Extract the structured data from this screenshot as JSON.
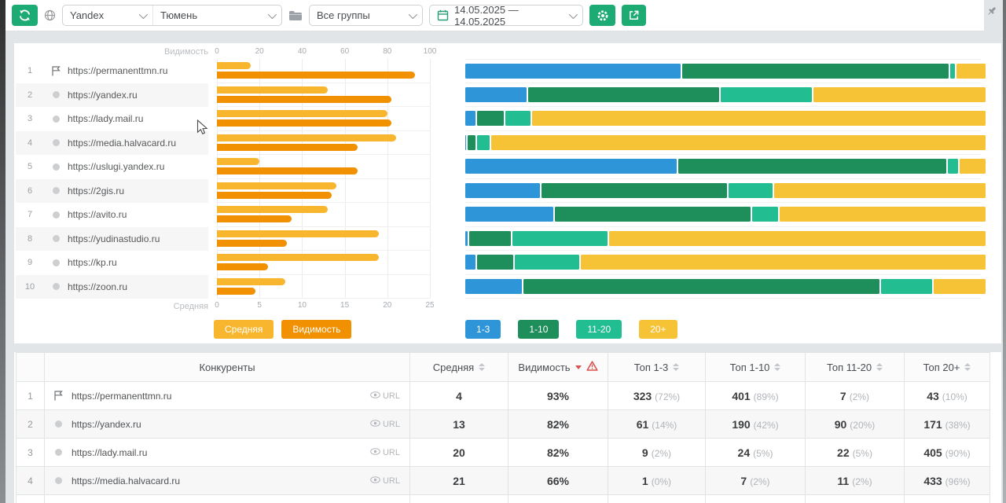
{
  "toolbar": {
    "search_engine": "Yandex",
    "region": "Тюмень",
    "groups": "Все группы",
    "date_range": "14.05.2025 — 14.05.2025"
  },
  "chart_labels": {
    "visibility": "Видимость",
    "average": "Средняя"
  },
  "competitors": [
    {
      "rank": "1",
      "url": "https://permanenttmn.ru",
      "flag": true
    },
    {
      "rank": "2",
      "url": "https://yandex.ru",
      "flag": false
    },
    {
      "rank": "3",
      "url": "https://lady.mail.ru",
      "flag": false
    },
    {
      "rank": "4",
      "url": "https://media.halvacard.ru",
      "flag": false
    },
    {
      "rank": "5",
      "url": "https://uslugi.yandex.ru",
      "flag": false
    },
    {
      "rank": "6",
      "url": "https://2gis.ru",
      "flag": false
    },
    {
      "rank": "7",
      "url": "https://avito.ru",
      "flag": false
    },
    {
      "rank": "8",
      "url": "https://yudinastudio.ru",
      "flag": false
    },
    {
      "rank": "9",
      "url": "https://kp.ru",
      "flag": false
    },
    {
      "rank": "10",
      "url": "https://zoon.ru",
      "flag": false
    }
  ],
  "chart_data": [
    {
      "type": "bar",
      "orientation": "horizontal",
      "categories": [
        "https://permanenttmn.ru",
        "https://yandex.ru",
        "https://lady.mail.ru",
        "https://media.halvacard.ru",
        "https://uslugi.yandex.ru",
        "https://2gis.ru",
        "https://avito.ru",
        "https://yudinastudio.ru",
        "https://kp.ru",
        "https://zoon.ru"
      ],
      "series": [
        {
          "name": "Средняя",
          "color": "#f8b62e",
          "axis": "bottom",
          "axis_range": [
            0,
            25
          ],
          "ticks": [
            0,
            5,
            10,
            15,
            20,
            25
          ],
          "values": [
            4,
            13,
            20,
            21,
            5,
            14,
            13,
            19,
            19,
            8
          ]
        },
        {
          "name": "Видимость",
          "color": "#f19000",
          "axis": "top",
          "axis_range": [
            0,
            100
          ],
          "ticks": [
            0,
            20,
            40,
            60,
            80,
            100
          ],
          "values": [
            93,
            82,
            82,
            66,
            66,
            54,
            35,
            33,
            24,
            18
          ]
        }
      ],
      "grid": true,
      "legend_position": "bottom"
    },
    {
      "type": "bar",
      "subtype": "stacked-percent",
      "orientation": "horizontal",
      "xlim": [
        0,
        100
      ],
      "categories": [
        "https://permanenttmn.ru",
        "https://yandex.ru",
        "https://lady.mail.ru",
        "https://media.halvacard.ru",
        "https://uslugi.yandex.ru",
        "https://2gis.ru",
        "https://avito.ru",
        "https://yudinastudio.ru",
        "https://kp.ru",
        "https://zoon.ru"
      ],
      "series": [
        {
          "name": "1-3",
          "color": "#2e96d8",
          "values": [
            41.7,
            11.9,
            2.0,
            0.2,
            41.0,
            14.5,
            17.0,
            0.5,
            2.0,
            11.0
          ]
        },
        {
          "name": "1-10",
          "color": "#1e8e5b",
          "values": [
            51.8,
            37.1,
            5.2,
            1.5,
            52.0,
            36.0,
            38.0,
            8.0,
            7.0,
            69.0
          ]
        },
        {
          "name": "11-20",
          "color": "#23bd92",
          "values": [
            0.9,
            17.6,
            4.8,
            2.4,
            2.0,
            8.5,
            5.0,
            18.5,
            12.5,
            10.0
          ]
        },
        {
          "name": "20+",
          "color": "#f6c337",
          "values": [
            5.6,
            33.4,
            88.0,
            95.9,
            5.0,
            41.0,
            40.0,
            73.0,
            78.5,
            10.0
          ]
        }
      ],
      "legend_position": "bottom"
    }
  ],
  "table": {
    "url_link_label": "URL",
    "headers": [
      {
        "label": ""
      },
      {
        "label": "Конкуренты"
      },
      {
        "label": "Средняя",
        "sortable": true
      },
      {
        "label": "Видимость",
        "sortable": true,
        "sorted": "desc",
        "warning": true
      },
      {
        "label": "Топ 1-3",
        "sortable": true
      },
      {
        "label": "Топ 1-10",
        "sortable": true
      },
      {
        "label": "Топ 11-20",
        "sortable": true
      },
      {
        "label": "Топ 20+",
        "sortable": true
      }
    ],
    "rows": [
      {
        "rank": "1",
        "url": "https://permanenttmn.ru",
        "flag": true,
        "avg": "4",
        "visibility": "93%",
        "tops": [
          [
            "323",
            "(72%)"
          ],
          [
            "401",
            "(89%)"
          ],
          [
            "7",
            "(2%)"
          ],
          [
            "43",
            "(10%)"
          ]
        ]
      },
      {
        "rank": "2",
        "url": "https://yandex.ru",
        "flag": false,
        "avg": "13",
        "visibility": "82%",
        "tops": [
          [
            "61",
            "(14%)"
          ],
          [
            "190",
            "(42%)"
          ],
          [
            "90",
            "(20%)"
          ],
          [
            "171",
            "(38%)"
          ]
        ]
      },
      {
        "rank": "3",
        "url": "https://lady.mail.ru",
        "flag": false,
        "avg": "20",
        "visibility": "82%",
        "tops": [
          [
            "9",
            "(2%)"
          ],
          [
            "24",
            "(5%)"
          ],
          [
            "22",
            "(5%)"
          ],
          [
            "405",
            "(90%)"
          ]
        ]
      },
      {
        "rank": "4",
        "url": "https://media.halvacard.ru",
        "flag": false,
        "avg": "21",
        "visibility": "66%",
        "tops": [
          [
            "1",
            "(0%)"
          ],
          [
            "7",
            "(2%)"
          ],
          [
            "11",
            "(2%)"
          ],
          [
            "433",
            "(96%)"
          ]
        ]
      }
    ]
  },
  "colors": {
    "accent_green": "#1cab73",
    "bar_average": "#f8b62e",
    "bar_visibility": "#f19000",
    "seg_top3": "#2e96d8",
    "seg_top10": "#1e8e5b",
    "seg_top20": "#23bd92",
    "seg_20plus": "#f6c337",
    "warning_red": "#d9534f"
  }
}
